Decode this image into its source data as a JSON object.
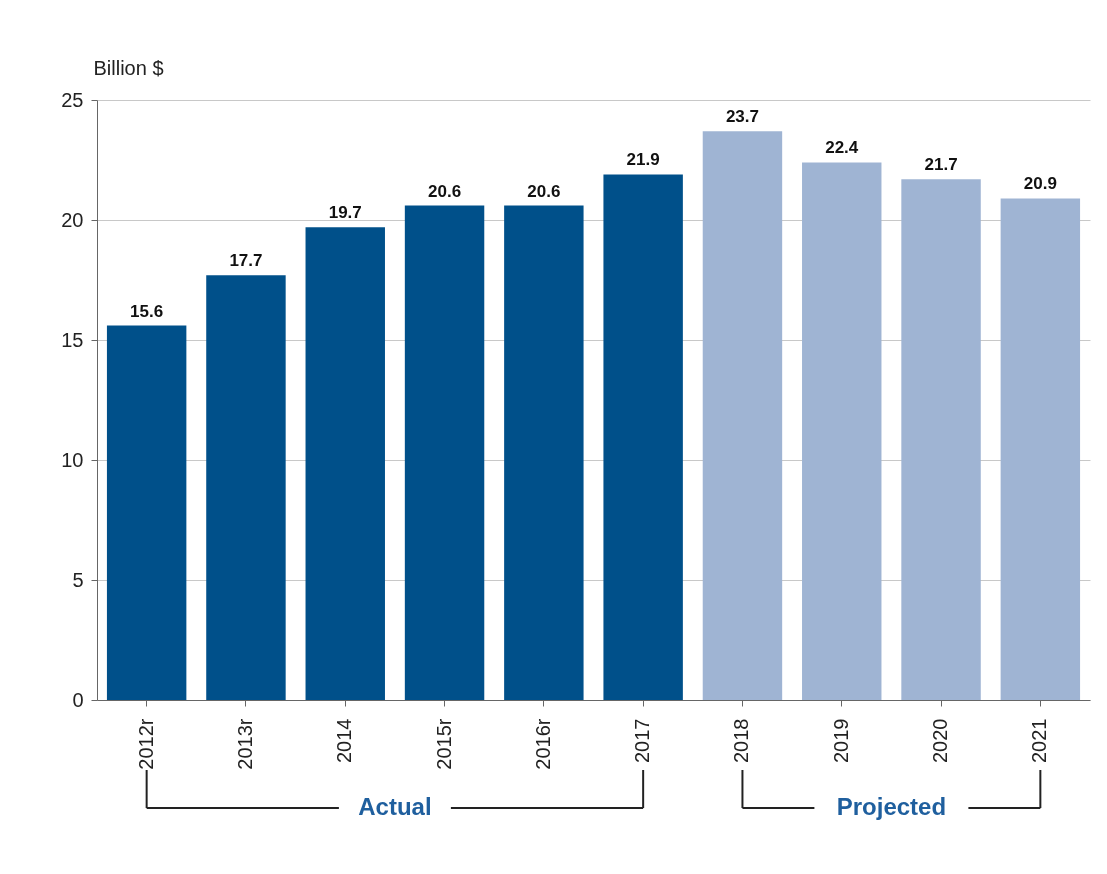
{
  "chart_data": {
    "type": "bar",
    "ylabel": "Billion $",
    "categories": [
      "2012r",
      "2013r",
      "2014",
      "2015r",
      "2016r",
      "2017",
      "2018",
      "2019",
      "2020",
      "2021"
    ],
    "values": [
      15.6,
      17.7,
      19.7,
      20.6,
      20.6,
      21.9,
      23.7,
      22.4,
      21.7,
      20.9
    ],
    "colors": [
      "#00508a",
      "#00508a",
      "#00508a",
      "#00508a",
      "#00508a",
      "#00508a",
      "#9fb4d3",
      "#9fb4d3",
      "#9fb4d3",
      "#9fb4d3"
    ],
    "ylim": [
      0,
      25
    ],
    "yticks": [
      0,
      5,
      10,
      15,
      20,
      25
    ],
    "grid": "y",
    "data_labels": true,
    "annotations": [
      "Actual",
      "Projected"
    ]
  }
}
